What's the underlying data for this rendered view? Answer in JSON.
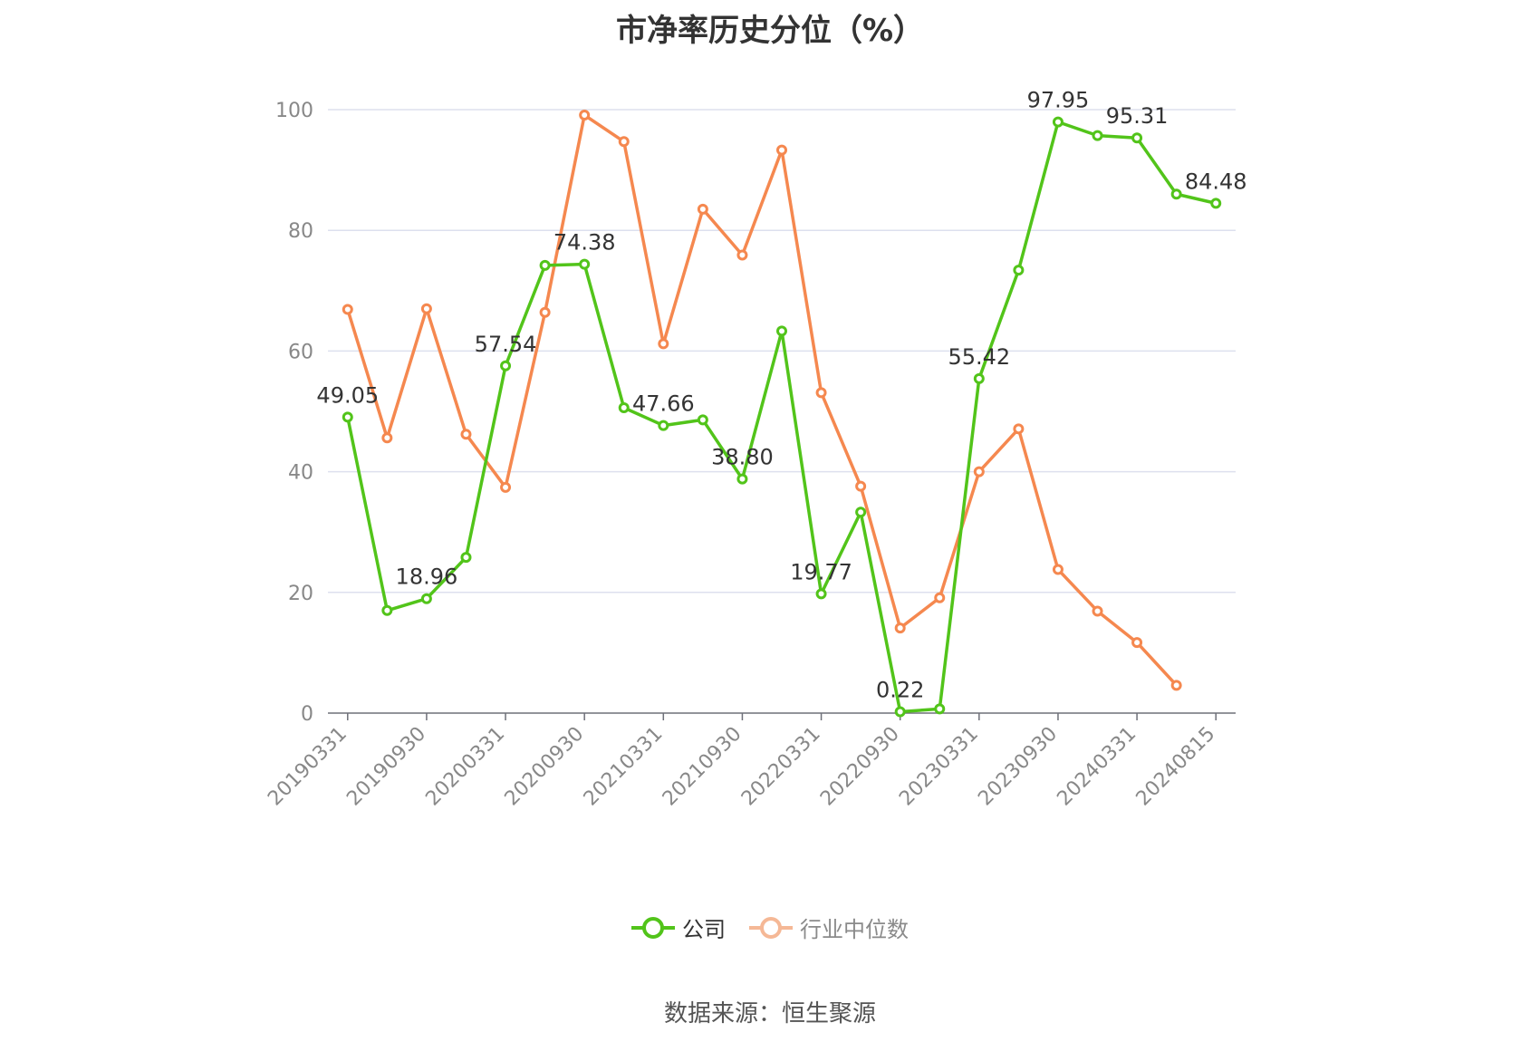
{
  "chart_data": {
    "type": "line",
    "title": "市净率历史分位（%）",
    "x": [
      "20190331",
      "20190630",
      "20190930",
      "20191231",
      "20200331",
      "20200630",
      "20200930",
      "20201231",
      "20210331",
      "20210630",
      "20210930",
      "20211231",
      "20220331",
      "20220630",
      "20220930",
      "20221231",
      "20230331",
      "20230630",
      "20230930",
      "20231231",
      "20240331",
      "20240630",
      "20240815"
    ],
    "x_tick_labels": [
      "20190331",
      "20190930",
      "20200331",
      "20200930",
      "20210331",
      "20210930",
      "20220331",
      "20220930",
      "20230331",
      "20230930",
      "20240331",
      "20240815"
    ],
    "ylim": [
      0,
      100
    ],
    "yticks": [
      0,
      20,
      40,
      60,
      80,
      100
    ],
    "grid": true,
    "legend_position": "bottom",
    "series": [
      {
        "name": "公司",
        "color": "#52c41a",
        "values": [
          49.05,
          17.0,
          18.96,
          25.8,
          57.54,
          74.2,
          74.38,
          50.6,
          47.66,
          48.6,
          38.8,
          63.3,
          19.77,
          33.3,
          0.22,
          0.7,
          55.42,
          73.4,
          97.95,
          95.7,
          95.31,
          86.0,
          84.48
        ],
        "data_labels": {
          "0": "49.05",
          "2": "18.96",
          "4": "57.54",
          "6": "74.38",
          "8": "47.66",
          "10": "38.80",
          "12": "19.77",
          "14": "0.22",
          "16": "55.42",
          "18": "97.95",
          "20": "95.31",
          "22": "84.48"
        }
      },
      {
        "name": "行业中位数",
        "color": "#f5884f",
        "values": [
          66.9,
          45.6,
          67.0,
          46.2,
          37.4,
          66.4,
          99.1,
          94.7,
          61.2,
          83.5,
          75.9,
          93.3,
          53.1,
          37.6,
          14.1,
          19.1,
          40.0,
          47.1,
          23.8,
          16.9,
          11.7,
          4.6,
          null
        ]
      }
    ]
  },
  "source": "数据来源：恒生聚源"
}
